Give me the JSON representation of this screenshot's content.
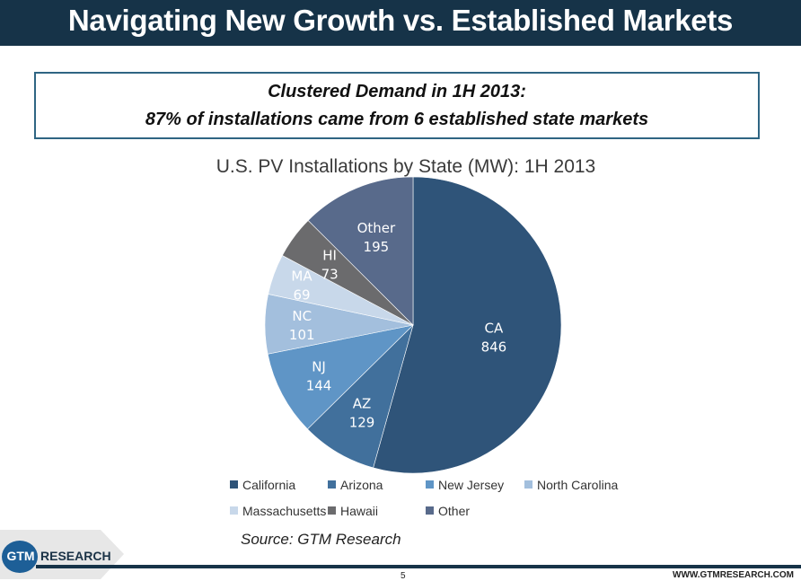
{
  "header": {
    "title": "Navigating New Growth vs. Established Markets"
  },
  "callout": {
    "line1": "Clustered Demand in 1H 2013:",
    "line2": "87% of installations came from 6 established state markets"
  },
  "chart_data": {
    "type": "pie",
    "title": "U.S. PV Installations by State (MW): 1H 2013",
    "unit": "MW",
    "start_angle": "12 o'clock, clockwise",
    "slices": [
      {
        "abbr": "CA",
        "name": "California",
        "value": 846,
        "color": "#2f5479"
      },
      {
        "abbr": "AZ",
        "name": "Arizona",
        "value": 129,
        "color": "#41709c"
      },
      {
        "abbr": "NJ",
        "name": "New Jersey",
        "value": 144,
        "color": "#5f95c6"
      },
      {
        "abbr": "NC",
        "name": "North Carolina",
        "value": 101,
        "color": "#a3bfdd"
      },
      {
        "abbr": "MA",
        "name": "Massachusetts",
        "value": 69,
        "color": "#c8d8ea"
      },
      {
        "abbr": "HI",
        "name": "Hawaii",
        "value": 73,
        "color": "#6b6b6d"
      },
      {
        "abbr": "Other",
        "name": "Other",
        "value": 195,
        "color": "#586a8b"
      }
    ],
    "legend": [
      "California",
      "Arizona",
      "New Jersey",
      "North Carolina",
      "Massachusetts",
      "Hawaii",
      "Other"
    ],
    "legend_placement": "bottom"
  },
  "source": "Source: GTM Research",
  "footer": {
    "logo_gtm": "GTM",
    "logo_research": "RESEARCH",
    "page_number": "5",
    "url": "WWW.GTMRESEARCH.COM"
  }
}
